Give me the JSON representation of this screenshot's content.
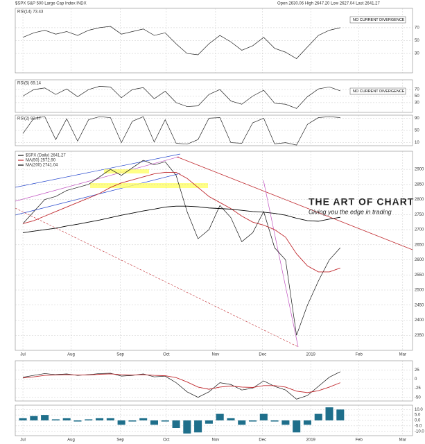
{
  "header": {
    "title": "$SPX S&P 500 Large Cap Index INDX",
    "quote": "Open 2630.06 High 2647.20 Low 2627.04 Last 2641.27"
  },
  "logo": {
    "title": "THE ART OF CHART",
    "tagline": "Giving you the edge in trading"
  },
  "x": [
    0,
    1,
    2,
    3,
    4,
    5,
    6,
    7,
    8,
    9,
    10,
    11,
    12,
    13,
    14,
    15,
    16,
    17,
    18,
    19,
    20,
    21,
    22,
    23,
    24,
    25,
    26,
    27,
    28,
    29
  ],
  "xlim": [
    -0.7,
    35.6
  ],
  "xticks": [
    {
      "value": 0,
      "label": "Jul"
    },
    {
      "value": 4.4,
      "label": "Aug"
    },
    {
      "value": 8.9,
      "label": "Sep"
    },
    {
      "value": 13.1,
      "label": "Oct"
    },
    {
      "value": 17.6,
      "label": "Nov"
    },
    {
      "value": 21.9,
      "label": "Dec"
    },
    {
      "value": 26.3,
      "label": "2019"
    },
    {
      "value": 30.7,
      "label": "Feb"
    },
    {
      "value": 34.7,
      "label": "Mar"
    }
  ],
  "chart_data": [
    {
      "type": "line",
      "label": "RSI(14) 73.43",
      "annotation": "NO CURRENT DIVERGENCE",
      "ylim": [
        0,
        100
      ],
      "yticks": [
        30,
        50,
        70
      ],
      "series": [
        {
          "color": "#222",
          "values": [
            55,
            62,
            66,
            60,
            64,
            58,
            66,
            70,
            72,
            60,
            64,
            68,
            58,
            62,
            45,
            30,
            28,
            45,
            58,
            48,
            35,
            42,
            55,
            38,
            32,
            22,
            40,
            58,
            66,
            70
          ]
        }
      ]
    },
    {
      "type": "line",
      "label": "RSI(5) 69.14",
      "annotation": "NO CURRENT DIVERGENCE",
      "ylim": [
        0,
        100
      ],
      "yticks": [
        30,
        50,
        70
      ],
      "series": [
        {
          "color": "#222",
          "values": [
            50,
            70,
            75,
            55,
            72,
            48,
            70,
            80,
            78,
            45,
            70,
            76,
            42,
            65,
            30,
            18,
            20,
            55,
            70,
            35,
            25,
            50,
            68,
            28,
            25,
            12,
            48,
            72,
            78,
            66
          ]
        }
      ]
    },
    {
      "type": "line",
      "label": "RSI(2) 92.47",
      "ylim": [
        0,
        100
      ],
      "yticks": [
        10,
        50,
        90
      ],
      "series": [
        {
          "color": "#222",
          "values": [
            40,
            90,
            95,
            20,
            88,
            15,
            85,
            95,
            92,
            10,
            80,
            95,
            12,
            85,
            8,
            5,
            20,
            90,
            92,
            10,
            8,
            75,
            90,
            6,
            10,
            2,
            70,
            92,
            95,
            92
          ]
        }
      ]
    },
    {
      "type": "line",
      "ylim": [
        2300,
        2960
      ],
      "yticks": [
        2350,
        2400,
        2450,
        2500,
        2550,
        2600,
        2650,
        2700,
        2750,
        2800,
        2850,
        2900
      ],
      "series": [
        {
          "name": "$SPX (Daily) 2641.27",
          "color": "#111",
          "values": [
            2720,
            2760,
            2800,
            2810,
            2830,
            2840,
            2850,
            2875,
            2900,
            2880,
            2905,
            2930,
            2915,
            2925,
            2880,
            2760,
            2670,
            2700,
            2780,
            2740,
            2660,
            2690,
            2760,
            2640,
            2600,
            2350,
            2450,
            2530,
            2600,
            2640
          ]
        },
        {
          "name": "MA(50) 2572.90",
          "color": "#c0282d",
          "values": [
            2720,
            2730,
            2745,
            2760,
            2775,
            2790,
            2805,
            2820,
            2840,
            2855,
            2865,
            2875,
            2885,
            2890,
            2890,
            2870,
            2840,
            2810,
            2790,
            2770,
            2745,
            2725,
            2715,
            2700,
            2675,
            2620,
            2580,
            2560,
            2560,
            2573
          ]
        },
        {
          "name": "MA(200) 2741.04",
          "color": "#000",
          "values": [
            2690,
            2695,
            2700,
            2705,
            2712,
            2718,
            2725,
            2732,
            2740,
            2748,
            2755,
            2762,
            2768,
            2775,
            2778,
            2778,
            2776,
            2772,
            2770,
            2768,
            2764,
            2760,
            2758,
            2754,
            2748,
            2738,
            2730,
            2728,
            2735,
            2741
          ]
        }
      ]
    },
    {
      "type": "line",
      "ylim": [
        -60,
        50
      ],
      "yticks": [
        -50,
        -25,
        0,
        25
      ],
      "series": [
        {
          "color": "#111",
          "values": [
            5,
            10,
            15,
            12,
            14,
            10,
            12,
            15,
            16,
            8,
            10,
            14,
            6,
            8,
            -10,
            -35,
            -50,
            -35,
            -10,
            -15,
            -30,
            -25,
            -5,
            -20,
            -30,
            -55,
            -45,
            -20,
            5,
            20
          ]
        },
        {
          "color": "#c0282d",
          "values": [
            3,
            6,
            10,
            11,
            12,
            11,
            11,
            13,
            14,
            12,
            11,
            12,
            10,
            9,
            4,
            -8,
            -22,
            -28,
            -22,
            -19,
            -22,
            -23,
            -18,
            -18,
            -22,
            -33,
            -37,
            -32,
            -22,
            -10
          ]
        }
      ]
    },
    {
      "type": "bar",
      "ylim": [
        -14,
        14
      ],
      "yticks": [
        {
          "value": -10,
          "label": "-10.0"
        },
        {
          "value": -5,
          "label": "-5.0"
        },
        {
          "value": 0,
          "label": "0.0"
        },
        {
          "value": 5,
          "label": "5.0"
        },
        {
          "value": 10,
          "label": "10.0"
        }
      ],
      "color": "#1f6f8b",
      "values": [
        2,
        4,
        5,
        1,
        2,
        -1,
        1,
        2,
        2,
        -4,
        -1,
        2,
        -4,
        -1,
        -7,
        -12,
        -11,
        -3,
        6,
        2,
        -4,
        -1,
        6,
        -1,
        -4,
        -11,
        -4,
        6,
        12,
        10
      ]
    }
  ]
}
